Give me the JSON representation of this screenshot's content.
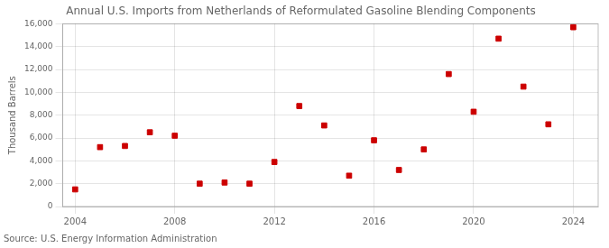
{
  "chart_data": {
    "type": "scatter",
    "title": "Annual U.S. Imports from Netherlands of Reformulated Gasoline Blending Components",
    "ylabel": "Thousand Barrels",
    "annotation": "Source: U.S. Energy Information Administration",
    "x": [
      2004,
      2005,
      2006,
      2007,
      2008,
      2009,
      2010,
      2011,
      2012,
      2013,
      2014,
      2015,
      2016,
      2017,
      2018,
      2019,
      2020,
      2021,
      2022,
      2023,
      2024
    ],
    "values": [
      1500,
      5200,
      5300,
      6500,
      6200,
      2000,
      2100,
      2000,
      3900,
      8800,
      7100,
      2700,
      5800,
      3200,
      5000,
      11600,
      8300,
      14700,
      10500,
      7200,
      15700
    ],
    "color": "#cc0000",
    "marker": "square",
    "xlim": [
      2003.5,
      2025
    ],
    "xticks": [
      2004,
      2008,
      2012,
      2016,
      2020,
      2024
    ],
    "ylim": [
      0,
      16000
    ],
    "yticks": [
      0,
      {
        "value": 2000,
        "label": "2,000"
      },
      {
        "value": 4000,
        "label": "4,000"
      },
      {
        "value": 6000,
        "label": "6,000"
      },
      {
        "value": 8000,
        "label": "8,000"
      },
      {
        "value": 10000,
        "label": "10,000"
      },
      {
        "value": 12000,
        "label": "12,000"
      },
      {
        "value": 14000,
        "label": "14,000"
      },
      {
        "value": 16000,
        "label": "16,000"
      }
    ],
    "grid": true
  }
}
